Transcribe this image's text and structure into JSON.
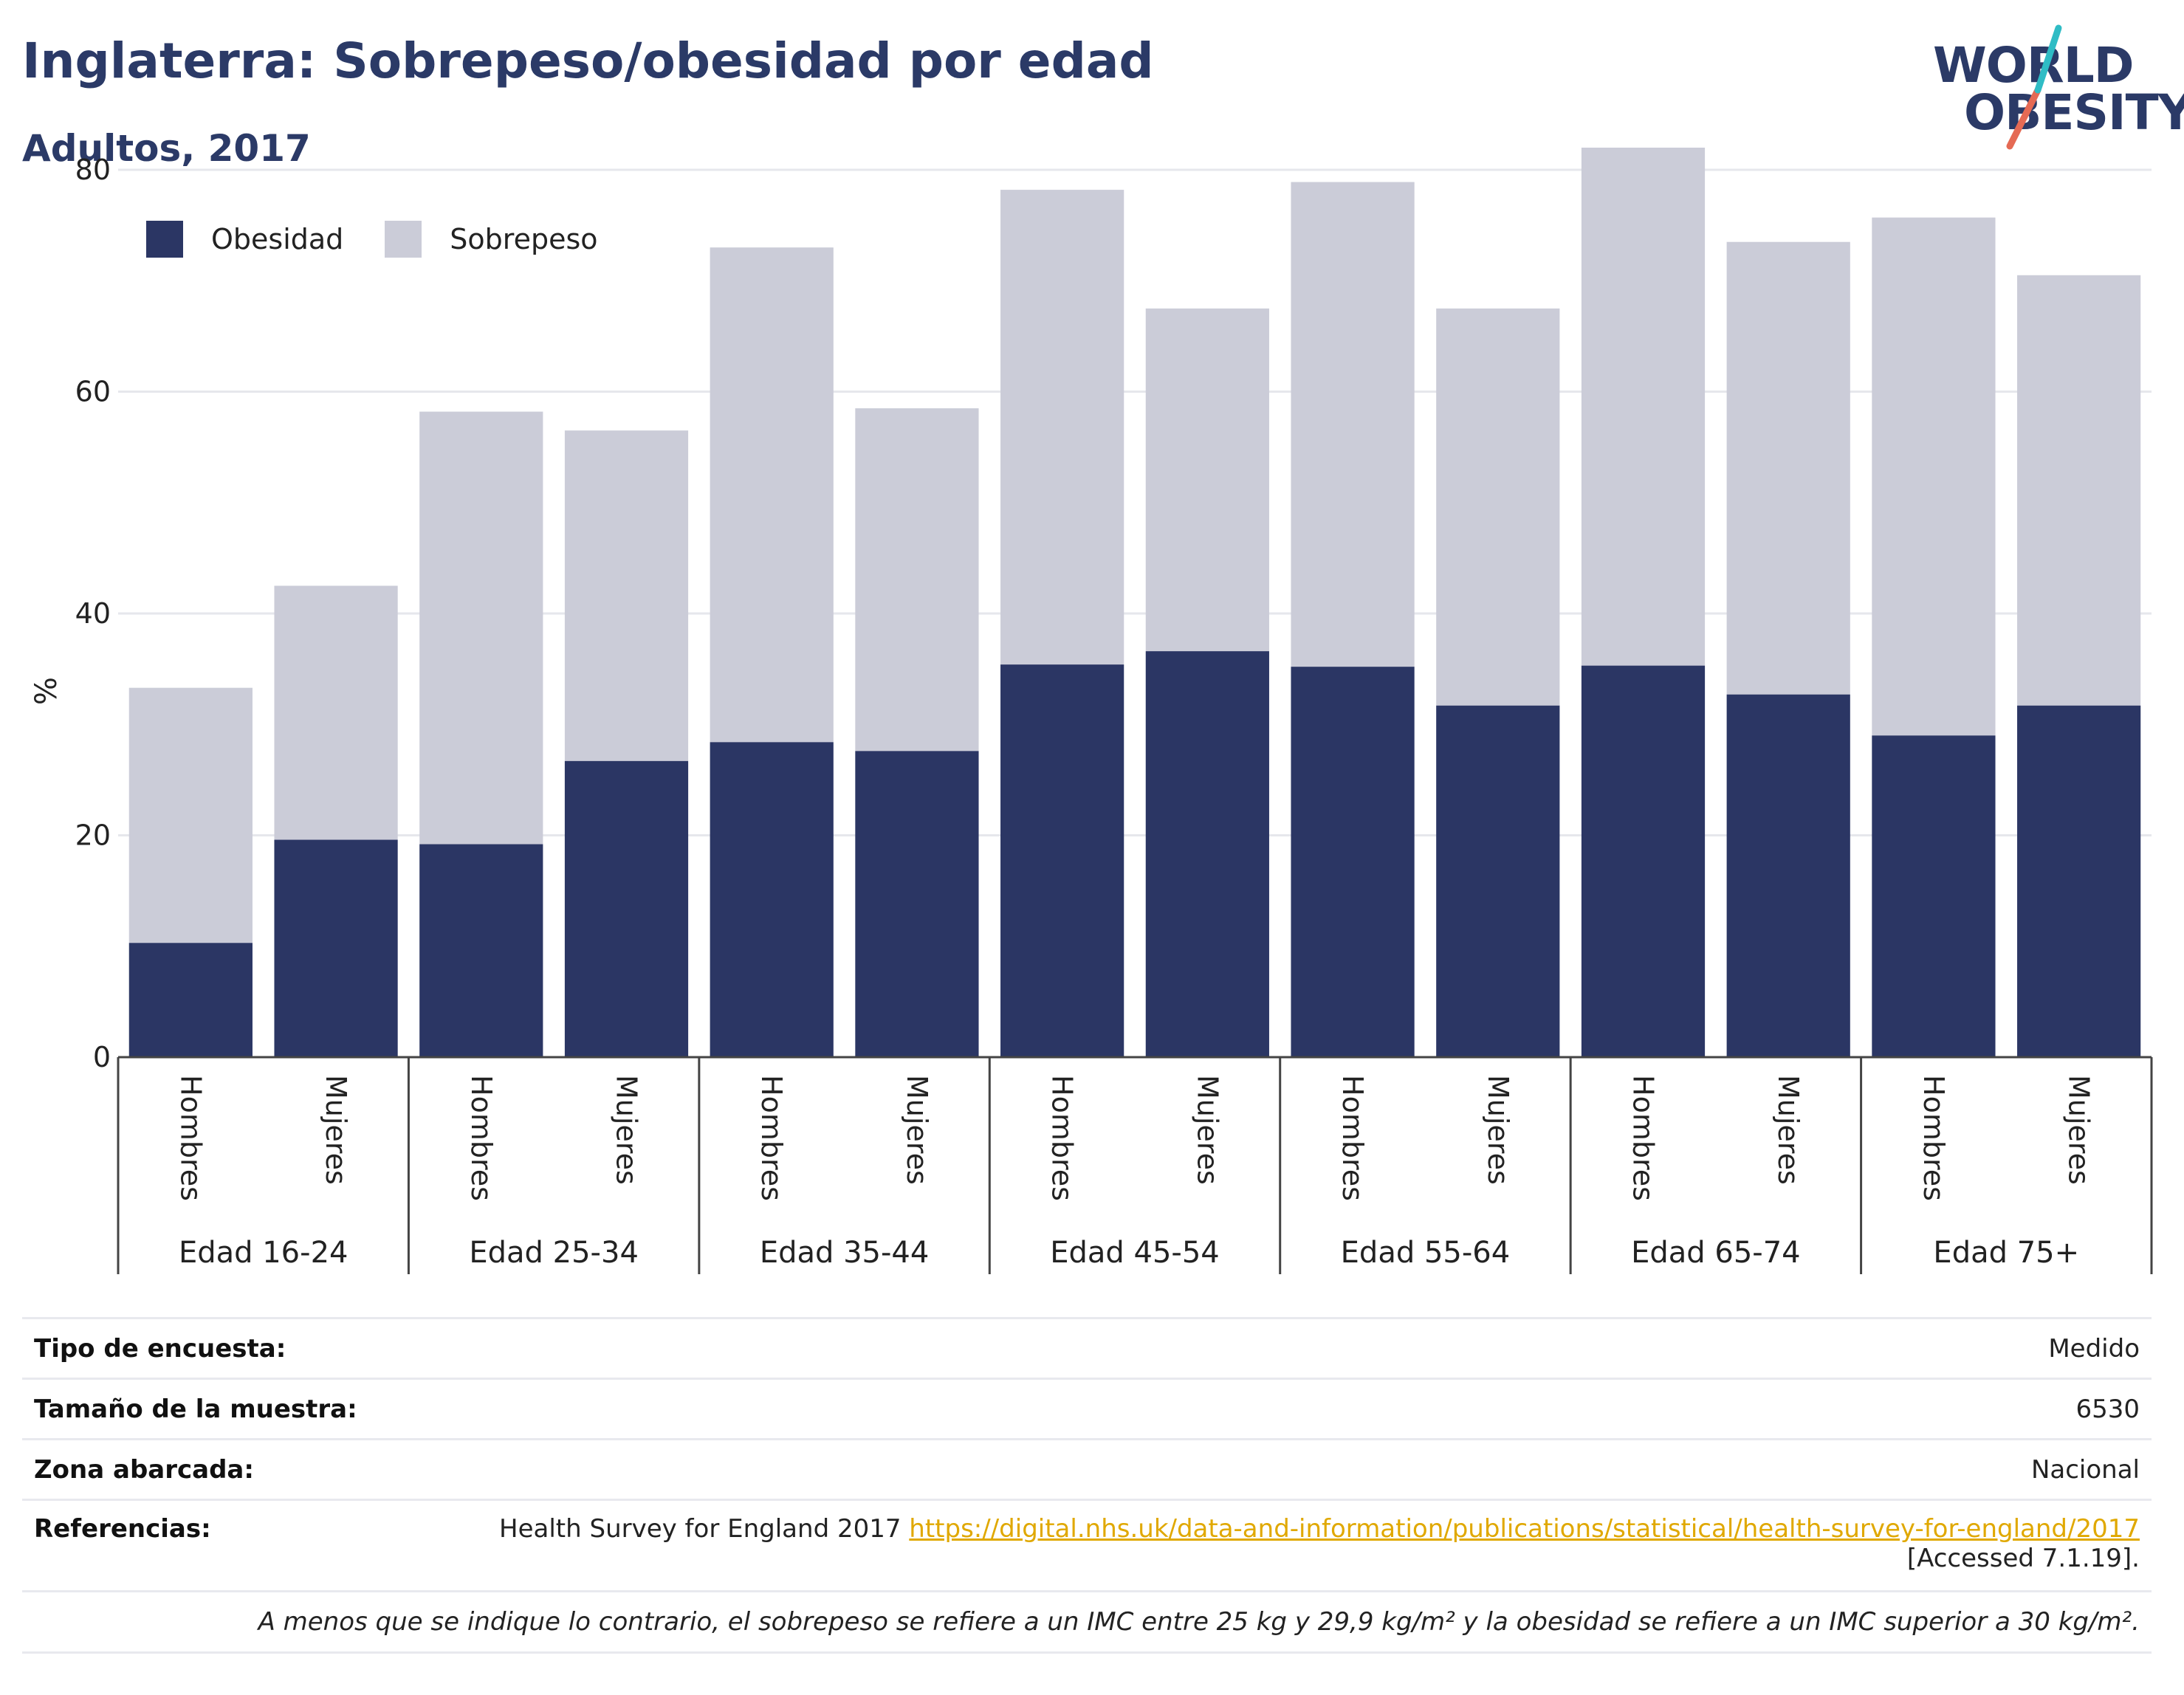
{
  "title": "Inglaterra: Sobrepeso/obesidad por edad",
  "subtitle": "Adultos, 2017",
  "logo": {
    "line1": "WORLD",
    "line2": "OBESITY"
  },
  "legend": [
    {
      "label": "Obesidad",
      "color": "#2b3664"
    },
    {
      "label": "Sobrepeso",
      "color": "#cbccd8"
    }
  ],
  "chart_data": {
    "type": "bar",
    "stacked": true,
    "ylabel": "%",
    "ylim": [
      0,
      82
    ],
    "yticks": [
      0,
      20,
      40,
      60,
      80
    ],
    "grid": true,
    "legend_position": "top-left",
    "groups": [
      "Edad 16-24",
      "Edad 25-34",
      "Edad 35-44",
      "Edad 45-54",
      "Edad 55-64",
      "Edad 65-74",
      "Edad 75+"
    ],
    "subcategories": [
      "Hombres",
      "Mujeres"
    ],
    "series": [
      {
        "name": "Obesidad",
        "color": "#2b3664",
        "values": [
          10.3,
          19.6,
          19.2,
          26.7,
          28.4,
          27.6,
          35.4,
          36.6,
          35.2,
          31.7,
          35.3,
          32.7,
          29.0,
          31.7
        ]
      },
      {
        "name": "Sobrepeso",
        "color": "#cbccd8",
        "values": [
          23.0,
          22.9,
          39.0,
          29.8,
          44.6,
          30.9,
          42.8,
          30.9,
          43.7,
          35.8,
          46.7,
          40.8,
          46.7,
          38.8
        ]
      }
    ]
  },
  "info": {
    "survey_label": "Tipo de encuesta:",
    "survey_value": "Medido",
    "sample_label": "Tamaño de la muestra:",
    "sample_value": "6530",
    "area_label": "Zona abarcada:",
    "area_value": "Nacional",
    "refs_label": "Referencias:",
    "refs_text": "Health Survey for England 2017",
    "refs_link": "https://digital.nhs.uk/data-and-information/publications/statistical/health-survey-for-england/2017",
    "refs_accessed": "[Accessed 7.1.19].",
    "note": "A menos que se indique lo contrario, el sobrepeso se refiere a un IMC entre 25 kg y 29,9 kg/m² y la obesidad se refiere a un IMC superior a 30 kg/m²."
  }
}
